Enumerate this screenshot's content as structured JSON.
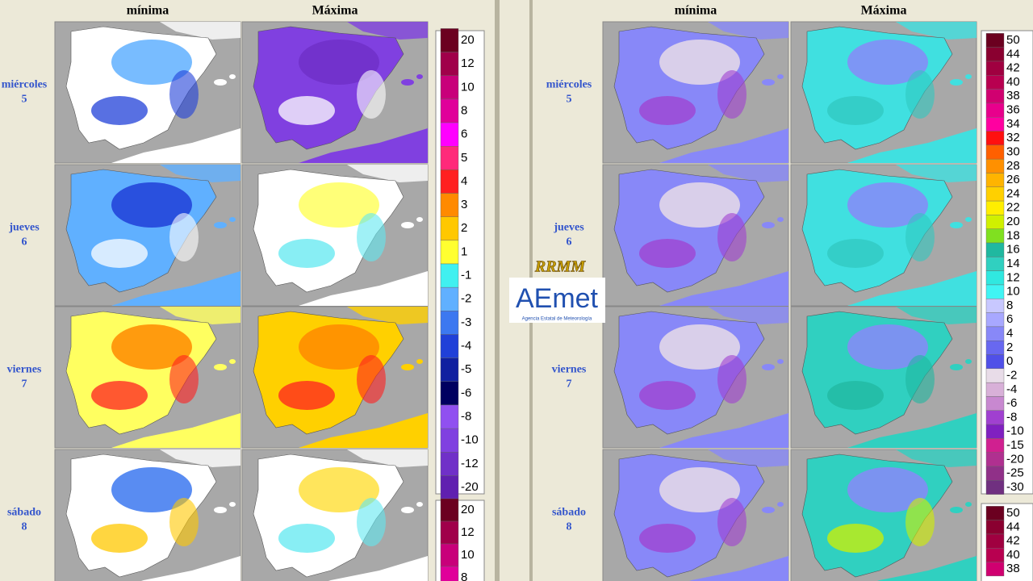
{
  "panels": [
    {
      "headers": [
        "mínima",
        "Máxima"
      ],
      "days": [
        {
          "name": "miércoles",
          "num": 5
        },
        {
          "name": "jueves",
          "num": 6
        },
        {
          "name": "viernes",
          "num": 7
        },
        {
          "name": "sábado",
          "num": 8
        }
      ],
      "legend": {
        "labels": [
          20,
          12,
          10,
          8,
          6,
          5,
          4,
          3,
          2,
          1,
          -1,
          -2,
          -3,
          -4,
          -5,
          -6,
          -8,
          -10,
          -12,
          -20
        ],
        "colors": [
          "#6b0020",
          "#a0004a",
          "#c8007a",
          "#e0009a",
          "#ff00ff",
          "#ff2a7a",
          "#ff2020",
          "#ff8a00",
          "#ffc800",
          "#ffff30",
          "#40f0f0",
          "#60b0ff",
          "#3c78f0",
          "#2040d8",
          "#1020a0",
          "#000060",
          "#9050f0",
          "#8040e0",
          "#7030c8",
          "#6020b0"
        ]
      },
      "legend2": {
        "labels": [
          20,
          12,
          10,
          8
        ],
        "colors": [
          "#6b0020",
          "#a0004a",
          "#c8007a",
          "#e0009a"
        ]
      }
    },
    {
      "headers": [
        "mínima",
        "Máxima"
      ],
      "days": [
        {
          "name": "miércoles",
          "num": 5
        },
        {
          "name": "jueves",
          "num": 6
        },
        {
          "name": "viernes",
          "num": 7
        },
        {
          "name": "sábado",
          "num": 8
        }
      ],
      "legend": {
        "labels": [
          50,
          44,
          42,
          40,
          38,
          36,
          34,
          32,
          30,
          28,
          26,
          24,
          22,
          20,
          18,
          16,
          14,
          12,
          10,
          8,
          6,
          4,
          2,
          0,
          -2,
          -4,
          -6,
          -8,
          -10,
          -15,
          -20,
          -25,
          -30
        ],
        "colors": [
          "#6b0020",
          "#8a0030",
          "#a00040",
          "#b80050",
          "#d00070",
          "#e8008c",
          "#ff00a0",
          "#ff1010",
          "#ff6000",
          "#ff9000",
          "#ffb400",
          "#ffd000",
          "#ffee00",
          "#d0f000",
          "#80e020",
          "#20b8a0",
          "#30d0c0",
          "#30e8e0",
          "#40f4f4",
          "#c8c8ff",
          "#a8a8ff",
          "#8888f8",
          "#6868f0",
          "#5050e8",
          "#e8dce8",
          "#d8b0d8",
          "#c888d0",
          "#a040d0",
          "#8020c0",
          "#d02090",
          "#b03090",
          "#903088",
          "#703080"
        ]
      },
      "legend2": {
        "labels": [
          50,
          44,
          42,
          40,
          38
        ],
        "colors": [
          "#6b0020",
          "#8a0030",
          "#a00040",
          "#b80050",
          "#d00070"
        ]
      }
    }
  ],
  "logo": {
    "title": "RRMM",
    "brand": "AEmet",
    "subtitle": "Agencia Estatal de Meteorología"
  }
}
